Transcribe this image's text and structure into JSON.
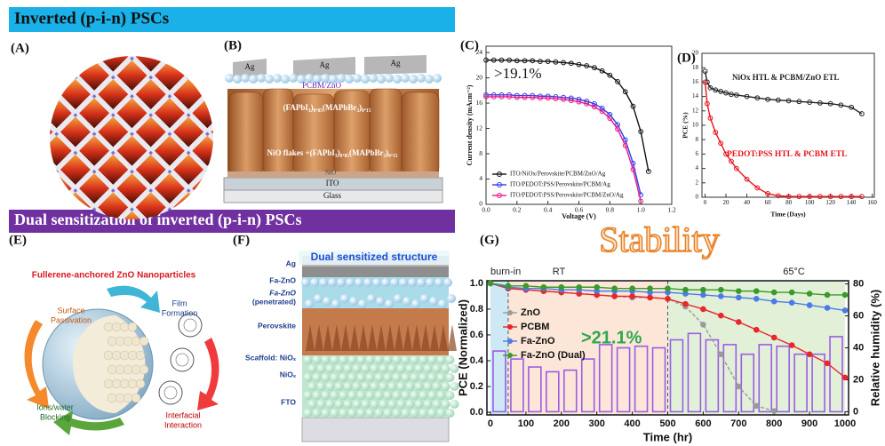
{
  "banners": [
    "Inverted (p-i-n) PSCs",
    "Dual sensitization of inverted (p-i-n) PSCs"
  ],
  "panel_labels": [
    "(A)",
    "(B)",
    "(C)",
    "(D)",
    "(E)",
    "(F)",
    "(G)"
  ],
  "panel_b": {
    "layers": [
      "Ag",
      "Ag",
      "Ag",
      "PCBM/ZnO",
      "(FAPbI₃)₀.₈₅(MAPbBr₃)₀.₁₅",
      "NiO flakes +(FAPbI₃)₀.₈₅(MAPbBr₃)₀.₁₅",
      "NiO",
      "ITO",
      "Glass"
    ]
  },
  "panel_e": {
    "title": "Fullerene-anchored ZnO Nanoparticles",
    "labels": [
      [
        "Surface",
        "Passivation"
      ],
      [
        "Film",
        "Formation"
      ],
      [
        "Ions/water",
        "Blocking"
      ],
      [
        "Interfacial",
        "Interaction"
      ]
    ]
  },
  "panel_f": {
    "title": "Dual sensitized structure",
    "layers": [
      [
        "Ag"
      ],
      [
        "Fa-ZnO"
      ],
      [
        "Fa-ZnO",
        "(penetrated)"
      ],
      [
        "Perovskite"
      ],
      [
        "Scaffold: NiOₓ"
      ],
      [
        "NiOₓ"
      ],
      [
        "FTO"
      ]
    ]
  },
  "chart_data": [
    {
      "type": "line",
      "xlabel": "Voltage (V)",
      "ylabel": "Current density (mAcm⁻²)",
      "annotation": ">19.1%",
      "xlim": [
        0,
        1.2
      ],
      "xticks": [
        {
          "value": 0,
          "label": "0.0"
        },
        0.2,
        0.4,
        0.6,
        0.8,
        {
          "value": 1,
          "label": "1.0"
        },
        1.2
      ],
      "ylim": [
        0,
        25
      ],
      "yticks": [
        0,
        4,
        8,
        12,
        16,
        20,
        24
      ],
      "legend": "lower left",
      "marker": "circle",
      "x": [
        0,
        0.05,
        0.1,
        0.15,
        0.2,
        0.25,
        0.3,
        0.35,
        0.4,
        0.45,
        0.5,
        0.55,
        0.6,
        0.65,
        0.7,
        0.75,
        0.8,
        0.85,
        0.9,
        0.95,
        1.0,
        1.05,
        1.1
      ],
      "series": [
        {
          "name": "ITO/NiOx/Perovskite/PCBM/ZnO/Ag",
          "color": "#111111",
          "values": [
            22.8,
            22.8,
            22.8,
            22.8,
            22.7,
            22.7,
            22.7,
            22.6,
            22.6,
            22.5,
            22.4,
            22.3,
            22.1,
            21.9,
            21.6,
            21.1,
            20.4,
            19.4,
            17.8,
            15.5,
            11.5,
            5.2,
            null
          ]
        },
        {
          "name": "ITO/PEDOT:PSS/Perovskite/PCBM/Ag",
          "color": "#2b3ff0",
          "values": [
            17.3,
            17.3,
            17.3,
            17.3,
            17.2,
            17.2,
            17.2,
            17.1,
            17.1,
            17.0,
            16.9,
            16.8,
            16.6,
            16.3,
            15.9,
            15.2,
            14.2,
            12.6,
            10.2,
            6.5,
            1.5,
            null,
            null
          ]
        },
        {
          "name": "ITO/PEDOT:PSS/Perovskite/PCBM/ZnO/Ag",
          "color": "#e8198b",
          "values": [
            17.0,
            17.0,
            17.0,
            17.0,
            16.9,
            16.9,
            16.9,
            16.8,
            16.8,
            16.7,
            16.6,
            16.4,
            16.2,
            15.9,
            15.4,
            14.7,
            13.6,
            11.9,
            9.3,
            5.5,
            0.5,
            null,
            null
          ]
        }
      ]
    },
    {
      "type": "line",
      "xlabel": "Time (Days)",
      "ylabel": "PCE (%)",
      "xlim": [
        -3,
        162
      ],
      "xticks": [
        0,
        20,
        40,
        60,
        80,
        100,
        120,
        140,
        160
      ],
      "ylim": [
        0,
        20
      ],
      "yticks": [
        0,
        2,
        4,
        6,
        8,
        10,
        12,
        14,
        16,
        18,
        20
      ],
      "marker": "circle",
      "x": [
        0,
        2,
        5,
        10,
        15,
        20,
        25,
        30,
        40,
        50,
        60,
        70,
        80,
        90,
        100,
        110,
        120,
        130,
        140,
        150
      ],
      "series": [
        {
          "name": "NiOx HTL & PCBM/ZnO ETL",
          "color": "#222222",
          "values": [
            17.5,
            16,
            15.2,
            14.9,
            14.7,
            14.5,
            14.3,
            14.2,
            14,
            13.8,
            13.6,
            13.5,
            13.4,
            13.3,
            13.2,
            13.1,
            13,
            12.8,
            12.5,
            11.6
          ]
        },
        {
          "name": "PEDOT:PSS HTL & PCBM ETL",
          "color": "#e8141c",
          "values": [
            16,
            13,
            11,
            9,
            7.5,
            6,
            5,
            4,
            2.5,
            1.3,
            0.5,
            0.2,
            0.1,
            0.1,
            0.1,
            0.1,
            0.1,
            0.1,
            0.1,
            0.1
          ]
        }
      ]
    },
    {
      "type": "line",
      "title": "Stability",
      "xlabel": "Time (hr)",
      "ylabel": "PCE (Normalized)",
      "y2label": "Relative humidity (%)",
      "annotation": ">21.1%",
      "xlim": [
        -10,
        1010
      ],
      "xticks": [
        0,
        100,
        200,
        300,
        400,
        500,
        600,
        700,
        800,
        900,
        1000
      ],
      "ylim": [
        -0.02,
        1.02
      ],
      "yticks": [
        {
          "value": 0,
          "label": "0.0"
        },
        0.2,
        0.4,
        0.6,
        0.8,
        {
          "value": 1,
          "label": "1.0"
        }
      ],
      "y2lim": [
        -2,
        82
      ],
      "y2ticks": [
        0,
        20,
        40,
        60,
        80
      ],
      "legend": "upper left",
      "marker": "circle",
      "regions": [
        {
          "label": "burn-in",
          "range": [
            0,
            50
          ],
          "color": "#cfe8f5"
        },
        {
          "label": "RT",
          "range": [
            50,
            500
          ],
          "color": "#fbe6d8"
        },
        {
          "label": "65°C",
          "range": [
            500,
            1000
          ],
          "color": "#e3f0d8"
        }
      ],
      "bars": {
        "axis": "y2",
        "color": "#9b5de5",
        "bins": [
          0,
          50,
          100,
          150,
          200,
          250,
          300,
          350,
          400,
          450,
          500,
          550,
          600,
          650,
          700,
          750,
          800,
          850,
          900,
          950,
          1000
        ],
        "values": [
          38,
          33,
          28,
          25,
          26,
          33,
          42,
          40,
          41,
          40,
          45,
          49,
          45,
          42,
          36,
          42,
          41,
          36,
          36,
          47
        ]
      },
      "x": [
        0,
        50,
        100,
        150,
        200,
        250,
        300,
        350,
        400,
        450,
        500,
        550,
        600,
        650,
        700,
        750,
        800,
        850,
        900,
        950,
        1000
      ],
      "series": [
        {
          "name": "ZnO",
          "color": "#9a9a9a",
          "values": [
            1.0,
            0.96,
            0.95,
            0.94,
            0.93,
            0.92,
            0.91,
            0.9,
            0.89,
            0.89,
            0.88,
            0.82,
            0.68,
            0.45,
            0.2,
            0.05,
            0.01,
            null,
            null,
            null,
            null
          ]
        },
        {
          "name": "PCBM",
          "color": "#e8262b",
          "values": [
            1.0,
            0.96,
            0.95,
            0.94,
            0.93,
            0.92,
            0.91,
            0.9,
            0.9,
            0.89,
            0.88,
            0.84,
            0.8,
            0.75,
            0.7,
            0.64,
            0.58,
            0.52,
            0.45,
            0.38,
            0.27
          ]
        },
        {
          "name": "Fa-ZnO",
          "color": "#4a7be8",
          "values": [
            1.0,
            0.97,
            0.96,
            0.96,
            0.95,
            0.95,
            0.94,
            0.94,
            0.94,
            0.93,
            0.93,
            0.92,
            0.91,
            0.9,
            0.89,
            0.88,
            0.86,
            0.85,
            0.83,
            0.81,
            0.79
          ]
        },
        {
          "name": "Fa-ZnO (Dual)",
          "color": "#3a9a2a",
          "values": [
            1.0,
            0.98,
            0.98,
            0.97,
            0.97,
            0.97,
            0.97,
            0.96,
            0.96,
            0.96,
            0.96,
            0.95,
            0.95,
            0.95,
            0.94,
            0.94,
            0.93,
            0.93,
            0.92,
            0.91,
            0.91
          ]
        }
      ]
    }
  ]
}
